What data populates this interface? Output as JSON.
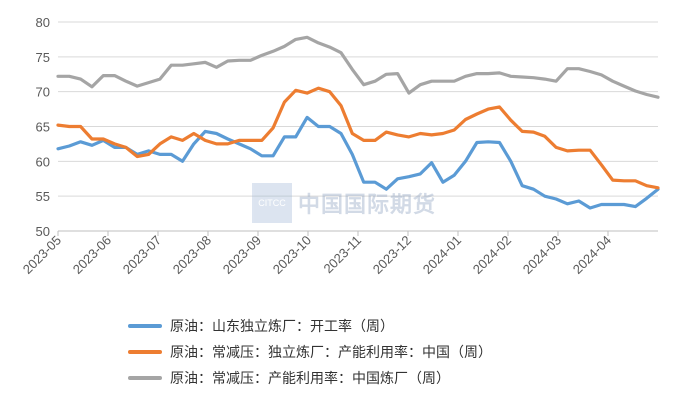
{
  "watermark": {
    "logo": "CITCC",
    "text": "中国国际期货"
  },
  "chart_data": {
    "type": "line",
    "title": "",
    "xlabel": "",
    "ylabel": "",
    "ylim": [
      50,
      80
    ],
    "yticks": [
      50,
      55,
      60,
      65,
      70,
      75,
      80
    ],
    "x_start": "2023-05",
    "x_end": "2024-05",
    "xticks": [
      "2023-05",
      "2023-06",
      "2023-07",
      "2023-08",
      "2023-09",
      "2023-10",
      "2023-11",
      "2023-12",
      "2024-01",
      "2024-02",
      "2024-03",
      "2024-04"
    ],
    "grid": "horizontal",
    "legend_position": "bottom",
    "series": [
      {
        "name": "原油：山东独立炼厂：开工率（周）",
        "color": "#5b9bd5",
        "values": [
          61.8,
          62.2,
          62.8,
          62.3,
          63.0,
          62.0,
          62.0,
          61.0,
          61.5,
          61.0,
          61.0,
          60.0,
          62.5,
          64.3,
          64.0,
          63.2,
          62.5,
          61.8,
          60.8,
          60.8,
          63.5,
          63.5,
          66.3,
          65.0,
          65.0,
          64.0,
          61.0,
          57.0,
          57.0,
          56.0,
          57.5,
          57.8,
          58.2,
          59.8,
          57.0,
          58.0,
          60.0,
          62.7,
          62.8,
          62.7,
          60.0,
          56.5,
          56.0,
          55.0,
          54.6,
          53.9,
          54.3,
          53.3,
          53.8,
          53.8,
          53.8,
          53.5,
          54.7,
          56.0
        ]
      },
      {
        "name": "原油：常减压：独立炼厂：产能利用率：中国（周）",
        "color": "#ed7d31",
        "values": [
          65.2,
          65.0,
          65.0,
          63.2,
          63.2,
          62.5,
          62.0,
          60.7,
          61.0,
          62.5,
          63.5,
          63.0,
          64.0,
          63.0,
          62.5,
          62.5,
          63.0,
          63.0,
          63.0,
          64.8,
          68.5,
          70.2,
          69.8,
          70.5,
          70.0,
          68.0,
          64.0,
          63.0,
          63.0,
          64.2,
          63.8,
          63.5,
          64.0,
          63.8,
          64.0,
          64.5,
          66.0,
          66.8,
          67.5,
          67.8,
          65.9,
          64.3,
          64.2,
          63.6,
          62.0,
          61.5,
          61.6,
          61.6,
          59.5,
          57.3,
          57.2,
          57.2,
          56.5,
          56.2
        ]
      },
      {
        "name": "原油：常减压：产能利用率：中国炼厂（周）",
        "color": "#a5a5a5",
        "values": [
          72.2,
          72.2,
          71.8,
          70.7,
          72.3,
          72.3,
          71.5,
          70.8,
          71.3,
          71.8,
          73.8,
          73.8,
          74.0,
          74.2,
          73.5,
          74.4,
          74.5,
          74.5,
          75.2,
          75.8,
          76.5,
          77.5,
          77.8,
          77.0,
          76.4,
          75.6,
          73.2,
          71.0,
          71.5,
          72.5,
          72.6,
          69.8,
          71.0,
          71.5,
          71.5,
          71.5,
          72.2,
          72.6,
          72.6,
          72.7,
          72.2,
          72.1,
          72.0,
          71.8,
          71.5,
          73.3,
          73.3,
          72.9,
          72.4,
          71.5,
          70.8,
          70.1,
          69.6,
          69.2
        ]
      }
    ]
  }
}
